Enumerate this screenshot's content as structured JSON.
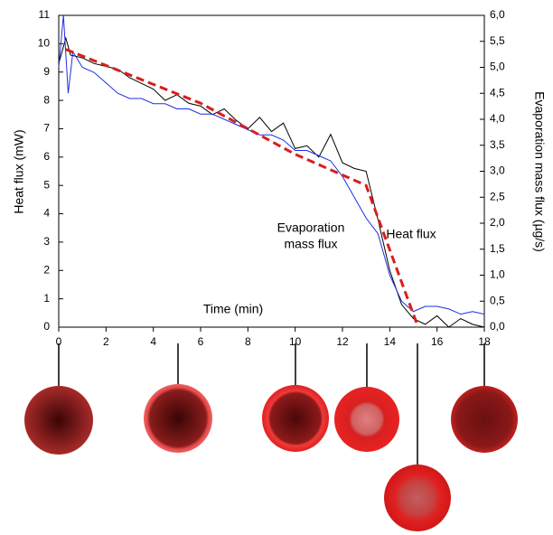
{
  "chart_data": {
    "type": "line",
    "xlabel": "Time (min)",
    "ylabel": "Heat flux (mW)",
    "y2label": "Evaporation mass flux (µg/s)",
    "annotations": [
      "Evaporation",
      "mass flux",
      "Heat flux"
    ],
    "xlim": [
      0,
      18
    ],
    "xticks": [
      0,
      2,
      4,
      6,
      8,
      10,
      12,
      14,
      16,
      18
    ],
    "ylim": [
      0,
      11
    ],
    "yticks": [
      0,
      1,
      2,
      3,
      4,
      5,
      6,
      7,
      8,
      9,
      10,
      11
    ],
    "y2lim": [
      0,
      6
    ],
    "y2ticks": [
      {
        "value": 0,
        "label": "0,0"
      },
      {
        "value": 0.5,
        "label": "0,5"
      },
      {
        "value": 1,
        "label": "1,0"
      },
      {
        "value": 1.5,
        "label": "1,5"
      },
      {
        "value": 2,
        "label": "2,0"
      },
      {
        "value": 2.5,
        "label": "2,5"
      },
      {
        "value": 3,
        "label": "3,0"
      },
      {
        "value": 3.5,
        "label": "3,5"
      },
      {
        "value": 4,
        "label": "4,0"
      },
      {
        "value": 4.5,
        "label": "4,5"
      },
      {
        "value": 5,
        "label": "5,0"
      },
      {
        "value": 5.5,
        "label": "5,5"
      },
      {
        "value": 6,
        "label": "6,0"
      }
    ],
    "series": [
      {
        "name": "Heat flux",
        "color": "#000000",
        "axis": "y",
        "x": [
          0,
          0.3,
          0.5,
          1,
          1.5,
          2,
          2.5,
          3,
          3.5,
          4,
          4.5,
          5,
          5.5,
          6,
          6.5,
          7,
          7.5,
          8,
          8.5,
          9,
          9.5,
          10,
          10.5,
          11,
          11.5,
          12,
          12.5,
          13,
          13.5,
          14,
          14.5,
          15,
          15.5,
          16,
          16.5,
          17,
          17.5,
          18
        ],
        "values": [
          9.3,
          10.2,
          9.6,
          9.5,
          9.3,
          9.2,
          9.1,
          8.8,
          8.6,
          8.4,
          8.0,
          8.2,
          7.9,
          7.8,
          7.5,
          7.7,
          7.3,
          7.0,
          7.4,
          6.9,
          7.2,
          6.3,
          6.4,
          6.0,
          6.8,
          5.8,
          5.6,
          5.5,
          3.8,
          2.0,
          0.8,
          0.3,
          0.1,
          0.4,
          0.0,
          0.3,
          0.1,
          0.0
        ]
      },
      {
        "name": "Evaporation mass flux",
        "color": "#1f2ee0",
        "axis": "y2",
        "x": [
          0,
          0.2,
          0.4,
          0.6,
          1,
          1.5,
          2,
          2.5,
          3,
          3.5,
          4,
          4.5,
          5,
          5.5,
          6,
          6.5,
          7,
          7.5,
          8,
          8.5,
          9,
          9.5,
          10,
          10.5,
          11,
          11.5,
          12,
          12.5,
          13,
          13.5,
          14,
          14.5,
          15,
          15.5,
          16,
          16.5,
          17,
          17.5,
          18
        ],
        "values": [
          5.0,
          6.0,
          4.5,
          5.3,
          5.0,
          4.9,
          4.7,
          4.5,
          4.4,
          4.4,
          4.3,
          4.3,
          4.2,
          4.2,
          4.1,
          4.1,
          4.0,
          3.9,
          3.8,
          3.7,
          3.7,
          3.6,
          3.4,
          3.4,
          3.3,
          3.2,
          2.9,
          2.5,
          2.1,
          1.8,
          1.0,
          0.5,
          0.3,
          0.4,
          0.4,
          0.35,
          0.25,
          0.3,
          0.25
        ]
      },
      {
        "name": "Fit",
        "color": "#d81e1e",
        "axis": "y",
        "dashed": true,
        "x": [
          0.3,
          6,
          10,
          13,
          15.2
        ],
        "values": [
          9.8,
          7.9,
          6.1,
          5.0,
          0
        ]
      }
    ]
  }
}
